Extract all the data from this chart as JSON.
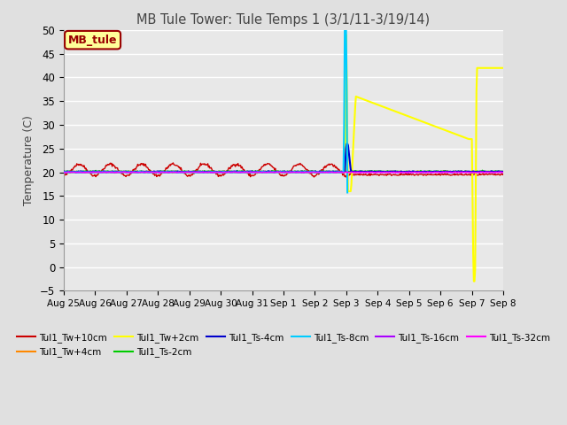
{
  "title": "MB Tule Tower: Tule Temps 1 (3/1/11-3/19/14)",
  "ylabel": "Temperature (C)",
  "ylim": [
    -5,
    50
  ],
  "yticks": [
    -5,
    0,
    5,
    10,
    15,
    20,
    25,
    30,
    35,
    40,
    45,
    50
  ],
  "background_color": "#e0e0e0",
  "plot_bg_color": "#e8e8e8",
  "grid_color": "white",
  "series": [
    {
      "label": "Tul1_Tw+10cm",
      "color": "#cc0000",
      "lw": 1.0
    },
    {
      "label": "Tul1_Tw+4cm",
      "color": "#ff8800",
      "lw": 1.0
    },
    {
      "label": "Tul1_Tw+2cm",
      "color": "#ffff00",
      "lw": 1.5
    },
    {
      "label": "Tul1_Ts-2cm",
      "color": "#00cc00",
      "lw": 1.0
    },
    {
      "label": "Tul1_Ts-4cm",
      "color": "#0000cc",
      "lw": 1.5
    },
    {
      "label": "Tul1_Ts-8cm",
      "color": "#00ccff",
      "lw": 1.5
    },
    {
      "label": "Tul1_Ts-16cm",
      "color": "#aa00ff",
      "lw": 1.0
    },
    {
      "label": "Tul1_Ts-32cm",
      "color": "#ff00ff",
      "lw": 1.0
    }
  ],
  "x_tick_labels": [
    "Aug 25",
    "Aug 26",
    "Aug 27",
    "Aug 28",
    "Aug 29",
    "Aug 30",
    "Aug 31",
    "Sep 1",
    "Sep 2",
    "Sep 3",
    "Sep 4",
    "Sep 5",
    "Sep 6",
    "Sep 7",
    "Sep 8"
  ],
  "box_label": "MB_tule",
  "box_color": "#990000",
  "box_bg": "#ffff99"
}
